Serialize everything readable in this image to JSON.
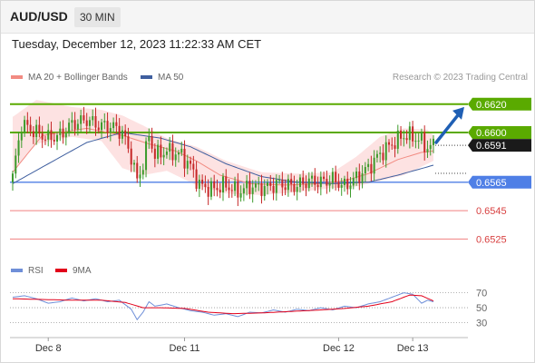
{
  "header": {
    "symbol": "AUD/USD",
    "timeframe": "30 MIN"
  },
  "datetime": "Tuesday, December 12, 2023 11:22:33 AM CET",
  "credit": "Research © 2023 Trading Central",
  "legend": {
    "price": [
      {
        "name": "MA 20 + Bollinger Bands",
        "color": "#f28b82"
      },
      {
        "name": "MA 50",
        "color": "#3f5f9f"
      }
    ],
    "rsi": [
      {
        "name": "RSI",
        "color": "#6f8fd8"
      },
      {
        "name": "9MA",
        "color": "#e2001a"
      }
    ]
  },
  "colors": {
    "up": "#3d9b2c",
    "down": "#c62828",
    "green_level": "#5aaa00",
    "blue_level": "#4f7fe6",
    "red_level": "#f08080",
    "ma20": "#f28b82",
    "ma50": "#3f5f9f",
    "band": "#fde2e2"
  },
  "chart_data": {
    "type": "candlestick",
    "price_ylim": [
      0.6515,
      0.6632
    ],
    "rsi_ylim": [
      10,
      95
    ],
    "rsi_ticks": [
      70,
      50,
      30
    ],
    "x_ticks": [
      "Dec 8",
      "Dec 11",
      "Dec 12",
      "Dec 13"
    ],
    "current_price": 0.6591,
    "levels": [
      {
        "value": 0.662,
        "label": "0.6620",
        "kind": "resistance"
      },
      {
        "value": 0.66,
        "label": "0.6600",
        "kind": "pivot"
      },
      {
        "value": 0.6565,
        "label": "0.6565",
        "kind": "support"
      },
      {
        "value": 0.6545,
        "label": "0.6545",
        "kind": "support"
      },
      {
        "value": 0.6525,
        "label": "0.6525",
        "kind": "support"
      }
    ],
    "arrow": {
      "from": 0.6593,
      "to": 0.6618,
      "direction": "up"
    },
    "close_anchors": [
      [
        0,
        0.6569
      ],
      [
        3,
        0.6606
      ],
      [
        8,
        0.66
      ],
      [
        12,
        0.6596
      ],
      [
        16,
        0.6598
      ],
      [
        20,
        0.6606
      ],
      [
        25,
        0.6609
      ],
      [
        29,
        0.6605
      ],
      [
        34,
        0.6604
      ],
      [
        37,
        0.66
      ],
      [
        40,
        0.6583
      ],
      [
        42,
        0.6566
      ],
      [
        44,
        0.6578
      ],
      [
        46,
        0.6598
      ],
      [
        48,
        0.6584
      ],
      [
        52,
        0.6587
      ],
      [
        57,
        0.6584
      ],
      [
        60,
        0.6576
      ],
      [
        63,
        0.6563
      ],
      [
        67,
        0.656
      ],
      [
        72,
        0.6563
      ],
      [
        76,
        0.6558
      ],
      [
        80,
        0.6562
      ],
      [
        85,
        0.6561
      ],
      [
        90,
        0.6564
      ],
      [
        95,
        0.6562
      ],
      [
        100,
        0.6566
      ],
      [
        104,
        0.6565
      ],
      [
        108,
        0.6567
      ],
      [
        112,
        0.6562
      ],
      [
        116,
        0.6568
      ],
      [
        120,
        0.6575
      ],
      [
        124,
        0.6585
      ],
      [
        128,
        0.6592
      ],
      [
        132,
        0.6598
      ],
      [
        135,
        0.6597
      ],
      [
        138,
        0.6594
      ],
      [
        140,
        0.6589
      ],
      [
        142,
        0.6591
      ]
    ],
    "ma20_anchors": [
      [
        0,
        0.6572
      ],
      [
        10,
        0.6598
      ],
      [
        25,
        0.6603
      ],
      [
        37,
        0.6598
      ],
      [
        46,
        0.6592
      ],
      [
        55,
        0.6587
      ],
      [
        62,
        0.658
      ],
      [
        70,
        0.657
      ],
      [
        80,
        0.6564
      ],
      [
        92,
        0.6563
      ],
      [
        104,
        0.6564
      ],
      [
        112,
        0.6566
      ],
      [
        120,
        0.6571
      ],
      [
        130,
        0.6581
      ],
      [
        138,
        0.6586
      ],
      [
        142,
        0.6587
      ]
    ],
    "ma50_anchors": [
      [
        0,
        0.6564
      ],
      [
        12,
        0.6578
      ],
      [
        25,
        0.6593
      ],
      [
        37,
        0.66
      ],
      [
        50,
        0.6596
      ],
      [
        60,
        0.659
      ],
      [
        72,
        0.6578
      ],
      [
        84,
        0.6569
      ],
      [
        96,
        0.6565
      ],
      [
        108,
        0.6564
      ],
      [
        120,
        0.6565
      ],
      [
        130,
        0.657
      ],
      [
        142,
        0.6577
      ]
    ],
    "band_anchors": [
      [
        0,
        0.6611,
        0.6573
      ],
      [
        8,
        0.6623,
        0.6592
      ],
      [
        20,
        0.6618,
        0.6597
      ],
      [
        30,
        0.6616,
        0.6594
      ],
      [
        37,
        0.6612,
        0.6575
      ],
      [
        44,
        0.6605,
        0.657
      ],
      [
        52,
        0.6596,
        0.6573
      ],
      [
        62,
        0.659,
        0.6563
      ],
      [
        72,
        0.658,
        0.6557
      ],
      [
        84,
        0.6572,
        0.6556
      ],
      [
        96,
        0.6571,
        0.6558
      ],
      [
        108,
        0.6572,
        0.6561
      ],
      [
        116,
        0.6583,
        0.6562
      ],
      [
        124,
        0.6597,
        0.6566
      ],
      [
        132,
        0.6603,
        0.657
      ],
      [
        140,
        0.6602,
        0.6578
      ],
      [
        142,
        0.6598,
        0.658
      ]
    ],
    "rsi_anchors": [
      [
        0,
        64
      ],
      [
        4,
        66
      ],
      [
        8,
        62
      ],
      [
        12,
        56
      ],
      [
        16,
        58
      ],
      [
        20,
        63
      ],
      [
        24,
        59
      ],
      [
        28,
        62
      ],
      [
        32,
        58
      ],
      [
        36,
        60
      ],
      [
        40,
        48
      ],
      [
        42,
        34
      ],
      [
        44,
        44
      ],
      [
        46,
        58
      ],
      [
        48,
        52
      ],
      [
        52,
        55
      ],
      [
        56,
        50
      ],
      [
        60,
        46
      ],
      [
        64,
        44
      ],
      [
        68,
        40
      ],
      [
        72,
        42
      ],
      [
        76,
        38
      ],
      [
        80,
        44
      ],
      [
        84,
        43
      ],
      [
        88,
        47
      ],
      [
        92,
        44
      ],
      [
        96,
        48
      ],
      [
        100,
        46
      ],
      [
        104,
        50
      ],
      [
        108,
        47
      ],
      [
        112,
        52
      ],
      [
        116,
        50
      ],
      [
        120,
        55
      ],
      [
        124,
        58
      ],
      [
        128,
        64
      ],
      [
        132,
        70
      ],
      [
        135,
        68
      ],
      [
        138,
        56
      ],
      [
        140,
        60
      ],
      [
        142,
        58
      ]
    ],
    "rsi_ma_anchors": [
      [
        0,
        62
      ],
      [
        10,
        61
      ],
      [
        20,
        60
      ],
      [
        30,
        60
      ],
      [
        38,
        57
      ],
      [
        44,
        50
      ],
      [
        50,
        50
      ],
      [
        58,
        49
      ],
      [
        66,
        44
      ],
      [
        74,
        42
      ],
      [
        84,
        43
      ],
      [
        94,
        45
      ],
      [
        104,
        47
      ],
      [
        112,
        49
      ],
      [
        120,
        52
      ],
      [
        128,
        58
      ],
      [
        134,
        67
      ],
      [
        138,
        66
      ],
      [
        142,
        59
      ]
    ]
  }
}
